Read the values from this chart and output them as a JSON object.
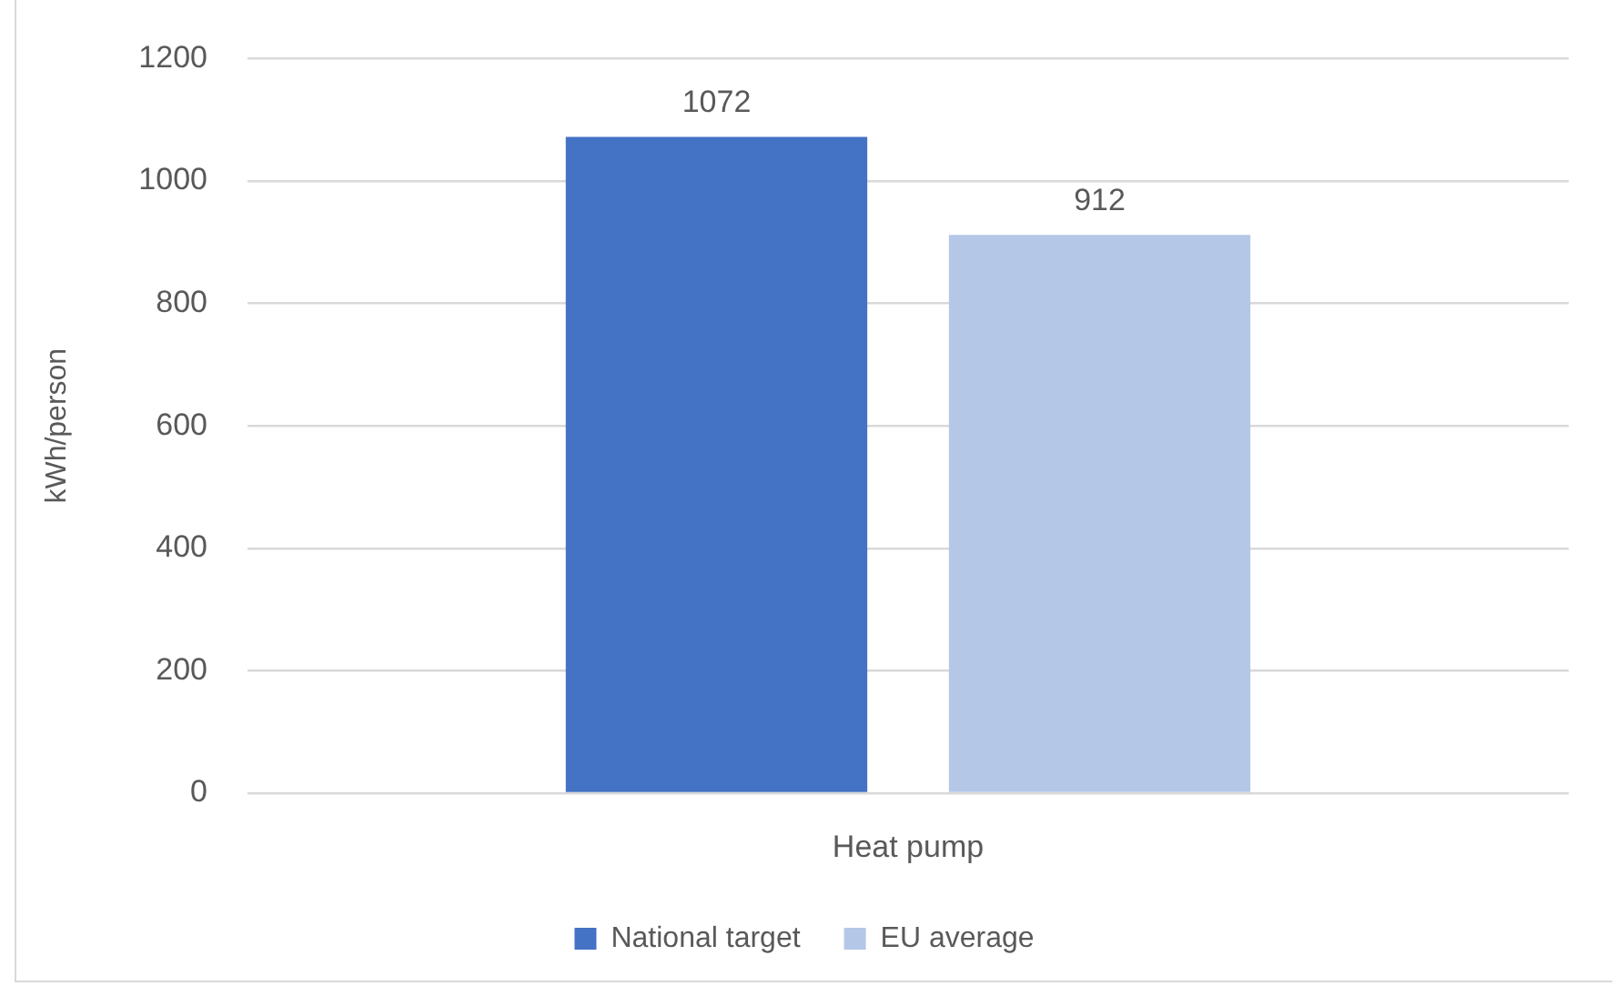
{
  "chart_data": {
    "type": "bar",
    "categories": [
      "Heat pump"
    ],
    "ylabel": "kWh/person",
    "series": [
      {
        "name": "National target",
        "color": "#4472c4",
        "values": [
          1072
        ]
      },
      {
        "name": "EU average",
        "color": "#b4c7e7",
        "values": [
          912
        ]
      }
    ],
    "ylim": [
      0,
      1200
    ],
    "yticks": [
      0,
      200,
      400,
      600,
      800,
      1000,
      1200
    ],
    "grid": "y",
    "legend": "bottom",
    "data_labels": true
  }
}
